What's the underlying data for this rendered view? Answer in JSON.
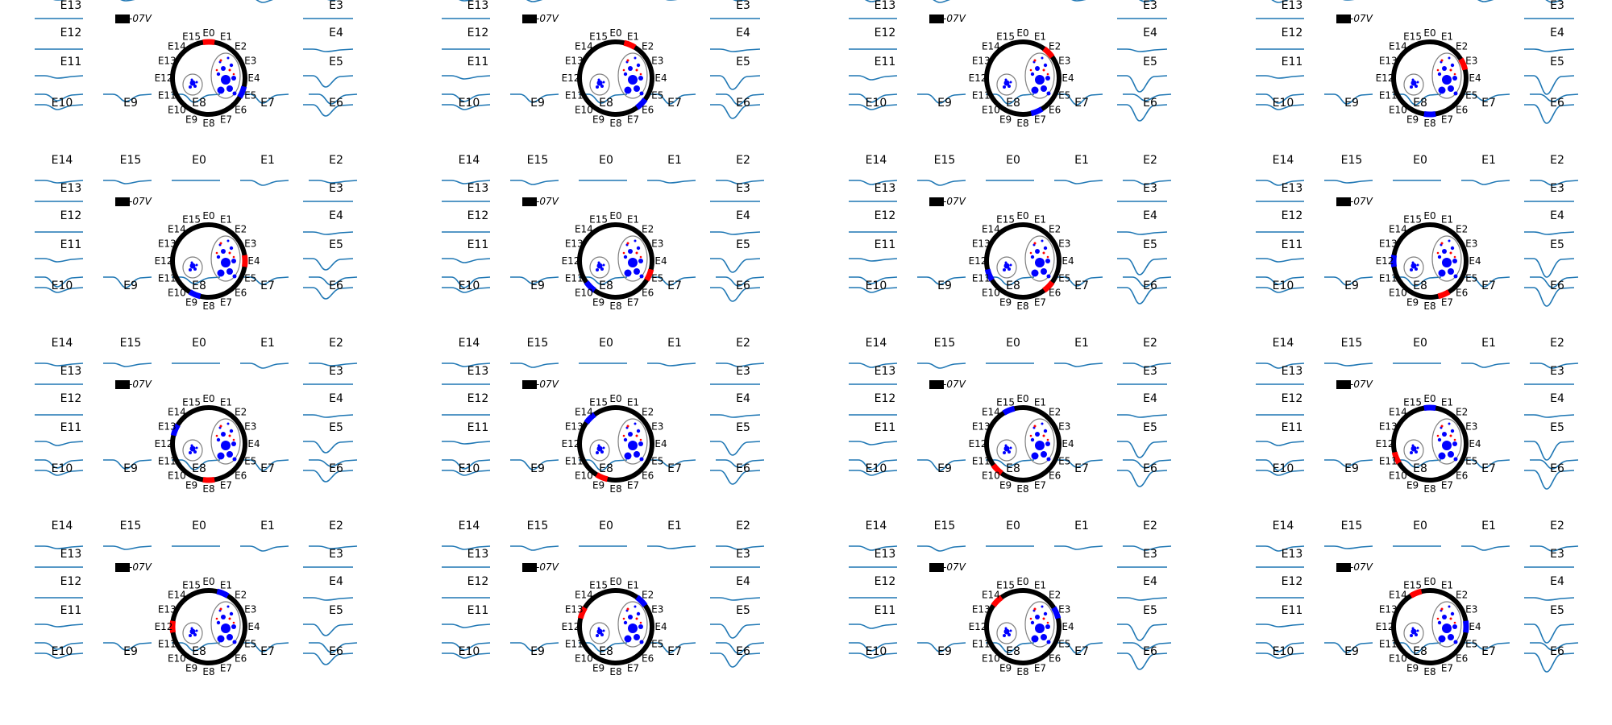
{
  "figure": {
    "trace_color": "#1f77b4",
    "ring_color": "#000000",
    "positive_color": "#ff0000",
    "negative_color": "#0000ff",
    "nerve_outline_color": "#808080",
    "scale_bar_label": "2e-07V"
  },
  "electrodes": {
    "top": [
      "E14",
      "E15",
      "E0",
      "E1",
      "E2"
    ],
    "left": [
      "E13",
      "E12",
      "E11"
    ],
    "right": [
      "E3",
      "E4",
      "E5"
    ],
    "bottom": [
      "E10",
      "E9",
      "E8",
      "E7",
      "E6"
    ],
    "ring": [
      "E0",
      "E1",
      "E2",
      "E3",
      "E4",
      "E5",
      "E6",
      "E7",
      "E8",
      "E9",
      "E10",
      "E11",
      "E12",
      "E13",
      "E14",
      "E15"
    ]
  },
  "panels": [
    {
      "id": "r1c1",
      "positive_contact": "E0",
      "negative_contact": "E5"
    },
    {
      "id": "r1c2",
      "positive_contact": "E1",
      "negative_contact": "E6"
    },
    {
      "id": "r1c3",
      "positive_contact": "E2",
      "negative_contact": "E7"
    },
    {
      "id": "r1c4",
      "positive_contact": "E3",
      "negative_contact": "E8"
    },
    {
      "id": "r2c1",
      "positive_contact": "E4",
      "negative_contact": "E9"
    },
    {
      "id": "r2c2",
      "positive_contact": "E5",
      "negative_contact": "E10"
    },
    {
      "id": "r2c3",
      "positive_contact": "E6",
      "negative_contact": "E11"
    },
    {
      "id": "r2c4",
      "positive_contact": "E7",
      "negative_contact": "E12"
    },
    {
      "id": "r3c1",
      "positive_contact": "E8",
      "negative_contact": "E13"
    },
    {
      "id": "r3c2",
      "positive_contact": "E9",
      "negative_contact": "E14"
    },
    {
      "id": "r3c3",
      "positive_contact": "E10",
      "negative_contact": "E15"
    },
    {
      "id": "r3c4",
      "positive_contact": "E11",
      "negative_contact": "E0"
    },
    {
      "id": "r4c1",
      "positive_contact": "E12",
      "negative_contact": "E1"
    },
    {
      "id": "r4c2",
      "positive_contact": "E13",
      "negative_contact": "E2"
    },
    {
      "id": "r4c3",
      "positive_contact": "E14",
      "negative_contact": "E3"
    },
    {
      "id": "r4c4",
      "positive_contact": "E15",
      "negative_contact": "E4"
    }
  ]
}
